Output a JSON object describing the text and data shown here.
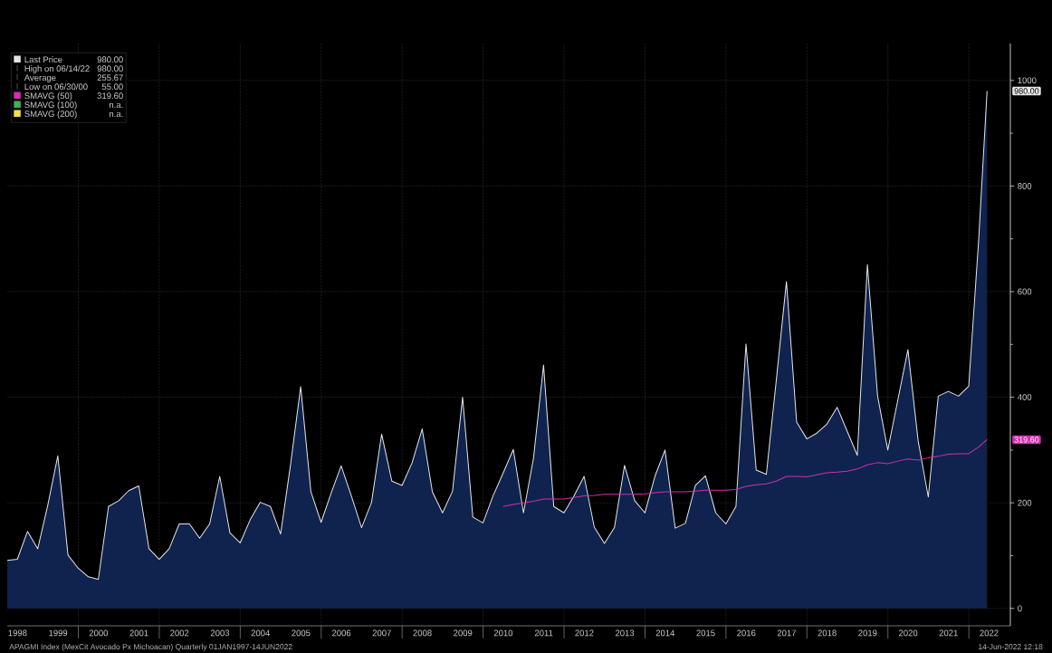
{
  "chart_data": {
    "type": "area",
    "x": [
      "1998-03-31",
      "1998-06-30",
      "1998-09-30",
      "1998-12-31",
      "1999-03-31",
      "1999-06-30",
      "1999-09-30",
      "1999-12-31",
      "2000-03-31",
      "2000-06-30",
      "2000-09-30",
      "2000-12-31",
      "2001-03-31",
      "2001-06-30",
      "2001-09-30",
      "2001-12-31",
      "2002-03-31",
      "2002-06-30",
      "2002-09-30",
      "2002-12-31",
      "2003-03-31",
      "2003-06-30",
      "2003-09-30",
      "2003-12-31",
      "2004-03-31",
      "2004-06-30",
      "2004-09-30",
      "2004-12-31",
      "2005-03-31",
      "2005-06-30",
      "2005-09-30",
      "2005-12-31",
      "2006-03-31",
      "2006-06-30",
      "2006-09-30",
      "2006-12-31",
      "2007-03-31",
      "2007-06-30",
      "2007-09-30",
      "2007-12-31",
      "2008-03-31",
      "2008-06-30",
      "2008-09-30",
      "2008-12-31",
      "2009-03-31",
      "2009-06-30",
      "2009-09-30",
      "2009-12-31",
      "2010-03-31",
      "2010-06-30",
      "2010-09-30",
      "2010-12-31",
      "2011-03-31",
      "2011-06-30",
      "2011-09-30",
      "2011-12-31",
      "2012-03-31",
      "2012-06-30",
      "2012-09-30",
      "2012-12-31",
      "2013-03-31",
      "2013-06-30",
      "2013-09-30",
      "2013-12-31",
      "2014-03-31",
      "2014-06-30",
      "2014-09-30",
      "2014-12-31",
      "2015-03-31",
      "2015-06-30",
      "2015-09-30",
      "2015-12-31",
      "2016-03-31",
      "2016-06-30",
      "2016-09-30",
      "2016-12-31",
      "2017-03-31",
      "2017-06-30",
      "2017-09-30",
      "2017-12-31",
      "2018-03-31",
      "2018-06-30",
      "2018-09-30",
      "2018-12-31",
      "2019-03-31",
      "2019-06-30",
      "2019-09-30",
      "2019-12-31",
      "2020-03-31",
      "2020-06-30",
      "2020-09-30",
      "2020-12-31",
      "2021-03-31",
      "2021-06-30",
      "2021-09-30",
      "2021-12-31",
      "2022-03-31",
      "2022-06-14"
    ],
    "series": [
      {
        "name": "Last Price",
        "color": "#e6e6ea",
        "values": [
          91,
          93,
          146,
          113,
          195,
          289,
          101,
          76,
          60,
          55,
          193,
          204,
          223,
          232,
          113,
          93,
          113,
          160,
          160,
          133,
          160,
          250,
          143,
          124,
          168,
          201,
          193,
          141,
          273,
          420,
          221,
          163,
          218,
          270,
          213,
          153,
          201,
          330,
          241,
          233,
          276,
          340,
          221,
          181,
          222,
          400,
          173,
          162,
          213,
          256,
          301,
          181,
          284,
          461,
          193,
          181,
          213,
          250,
          154,
          123,
          153,
          271,
          204,
          181,
          250,
          300,
          152,
          161,
          233,
          251,
          181,
          160,
          193,
          501,
          262,
          254,
          433,
          619,
          353,
          321,
          332,
          349,
          381,
          335,
          290,
          651,
          402,
          300,
          395,
          490,
          318,
          211,
          402,
          411,
          402,
          421,
          700,
          980
        ]
      },
      {
        "name": "SMAVG (50)",
        "color": "#d12fae",
        "type": "line",
        "values": [
          null,
          null,
          null,
          null,
          null,
          null,
          null,
          null,
          null,
          null,
          null,
          null,
          null,
          null,
          null,
          null,
          null,
          null,
          null,
          null,
          null,
          null,
          null,
          null,
          null,
          null,
          null,
          null,
          null,
          null,
          null,
          null,
          null,
          null,
          null,
          null,
          null,
          null,
          null,
          null,
          null,
          null,
          null,
          null,
          null,
          null,
          null,
          null,
          null,
          193,
          197,
          200,
          203,
          207,
          207,
          207,
          210,
          213,
          214,
          216,
          216,
          216,
          216,
          217,
          219,
          221,
          221,
          221,
          222,
          224,
          224,
          224,
          225,
          231,
          234,
          236,
          241,
          250,
          250,
          249,
          253,
          257,
          258,
          260,
          264,
          272,
          276,
          274,
          279,
          283,
          281,
          285,
          288,
          292,
          293,
          293,
          306,
          319.6
        ]
      },
      {
        "name": "SMAVG (100)",
        "color": "#3cb54a",
        "type": "line",
        "values": [
          null,
          null,
          null,
          null,
          null,
          null,
          null,
          null,
          null,
          null,
          null,
          null,
          null,
          null,
          null,
          null,
          null,
          null,
          null,
          null,
          null,
          null,
          null,
          null,
          null,
          null,
          null,
          null,
          null,
          null,
          null,
          null,
          null,
          null,
          null,
          null,
          null,
          null,
          null,
          null,
          null,
          null,
          null,
          null,
          null,
          null,
          null,
          null,
          null,
          null,
          null,
          null,
          null,
          null,
          null,
          null,
          null,
          null,
          null,
          null,
          null,
          null,
          null,
          null,
          null,
          null,
          null,
          null,
          null,
          null,
          null,
          null,
          null,
          null,
          null,
          null,
          null,
          null,
          null,
          null,
          null,
          null,
          null,
          null,
          null,
          null,
          null,
          null,
          null,
          null,
          null,
          null,
          null,
          null,
          null,
          null,
          null,
          null
        ]
      },
      {
        "name": "SMAVG (200)",
        "color": "#f0e24a",
        "type": "line",
        "values": [
          null,
          null,
          null,
          null,
          null,
          null,
          null,
          null,
          null,
          null,
          null,
          null,
          null,
          null,
          null,
          null,
          null,
          null,
          null,
          null,
          null,
          null,
          null,
          null,
          null,
          null,
          null,
          null,
          null,
          null,
          null,
          null,
          null,
          null,
          null,
          null,
          null,
          null,
          null,
          null,
          null,
          null,
          null,
          null,
          null,
          null,
          null,
          null,
          null,
          null,
          null,
          null,
          null,
          null,
          null,
          null,
          null,
          null,
          null,
          null,
          null,
          null,
          null,
          null,
          null,
          null,
          null,
          null,
          null,
          null,
          null,
          null,
          null,
          null,
          null,
          null,
          null,
          null,
          null,
          null,
          null,
          null,
          null,
          null,
          null,
          null,
          null,
          null,
          null,
          null,
          null,
          null,
          null,
          null,
          null,
          null,
          null,
          null
        ]
      }
    ],
    "xlim": [
      "1998-03-31",
      "2023-01-10"
    ],
    "xticks": [
      {
        "value": "1998-07-02",
        "label": "1998"
      },
      {
        "value": "1999-07-02",
        "label": "1999"
      },
      {
        "value": "2000-07-02",
        "label": "2000"
      },
      {
        "value": "2001-07-02",
        "label": "2001"
      },
      {
        "value": "2002-07-02",
        "label": "2002"
      },
      {
        "value": "2003-07-02",
        "label": "2003"
      },
      {
        "value": "2004-07-02",
        "label": "2004"
      },
      {
        "value": "2005-07-02",
        "label": "2005"
      },
      {
        "value": "2006-07-02",
        "label": "2006"
      },
      {
        "value": "2007-07-02",
        "label": "2007"
      },
      {
        "value": "2008-07-02",
        "label": "2008"
      },
      {
        "value": "2009-07-02",
        "label": "2009"
      },
      {
        "value": "2010-07-02",
        "label": "2010"
      },
      {
        "value": "2011-07-02",
        "label": "2011"
      },
      {
        "value": "2012-07-02",
        "label": "2012"
      },
      {
        "value": "2013-07-02",
        "label": "2013"
      },
      {
        "value": "2014-07-02",
        "label": "2014"
      },
      {
        "value": "2015-07-02",
        "label": "2015"
      },
      {
        "value": "2016-07-02",
        "label": "2016"
      },
      {
        "value": "2017-07-02",
        "label": "2017"
      },
      {
        "value": "2018-07-02",
        "label": "2018"
      },
      {
        "value": "2019-07-02",
        "label": "2019"
      },
      {
        "value": "2020-07-02",
        "label": "2020"
      },
      {
        "value": "2021-07-02",
        "label": "2021"
      },
      {
        "value": "2022-07-02",
        "label": "2022"
      },
      {
        "value": "2000-01-01",
        "label": null
      },
      {
        "value": "2002-01-01",
        "label": null
      },
      {
        "value": "2004-01-01",
        "label": null
      },
      {
        "value": "2006-01-01",
        "label": null
      },
      {
        "value": "2008-01-01",
        "label": null
      },
      {
        "value": "2010-01-01",
        "label": null
      },
      {
        "value": "2012-01-01",
        "label": null
      },
      {
        "value": "2014-01-01",
        "label": null
      },
      {
        "value": "2016-01-01",
        "label": null
      },
      {
        "value": "2018-01-01",
        "label": null
      },
      {
        "value": "2020-01-01",
        "label": null
      },
      {
        "value": "2022-01-01",
        "label": null
      }
    ],
    "ylim": [
      -33,
      1070
    ],
    "yticks": [
      0,
      {
        "value": 100,
        "label": null
      },
      200,
      {
        "value": 300,
        "label": null
      },
      400,
      {
        "value": 500,
        "label": null
      },
      600,
      {
        "value": 700,
        "label": null
      },
      800,
      {
        "value": 900,
        "label": null
      },
      1000
    ],
    "grid": true,
    "legend": "top left",
    "marker": "none",
    "line_style": "solid",
    "annotations": [
      "980.00",
      "High on 06/14/22",
      "980.00",
      "Average",
      "255.67",
      "Low on 06/30/00",
      "55.00",
      "319.60",
      "n.a.",
      "n.a.",
      "APAGMI Index (MexCit Avocado Px Michoacan)  Quarterly 01JAN1997-14JUN2022",
      "14-Jun-2022 12:18",
      "980.00",
      "319.60"
    ]
  }
}
